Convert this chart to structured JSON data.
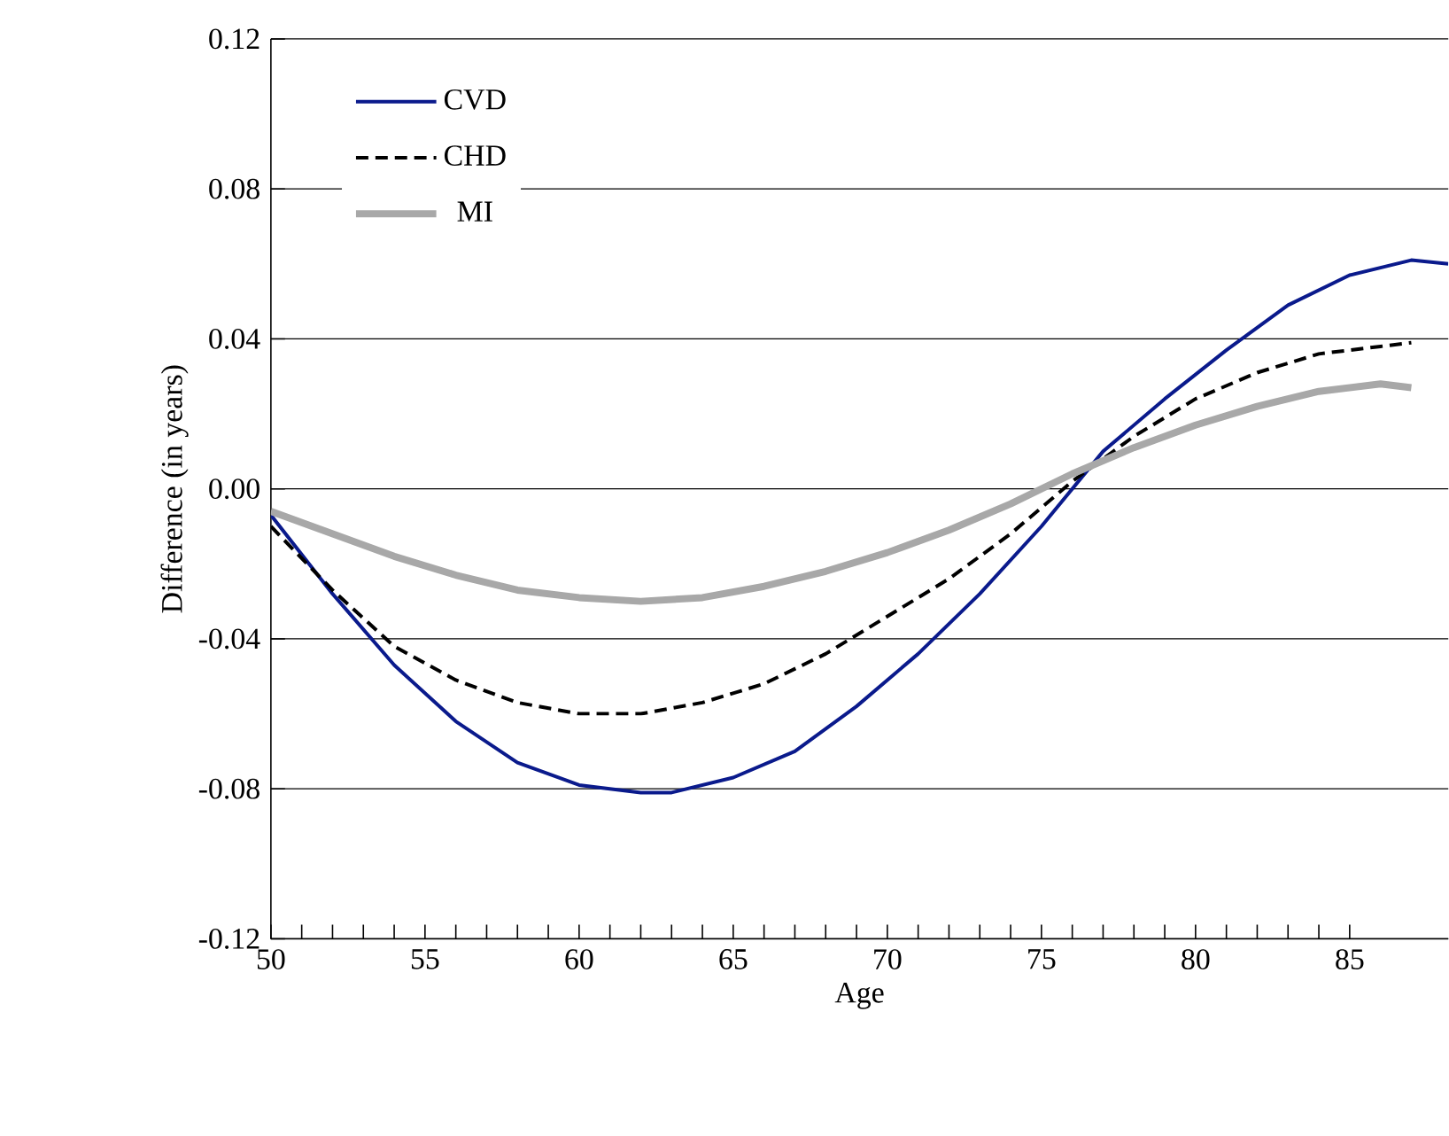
{
  "chart_data": {
    "type": "line",
    "xlabel": "Age",
    "ylabel": "Difference (in years)",
    "xlim": [
      50,
      88.2
    ],
    "ylim": [
      -0.12,
      0.12
    ],
    "xticks": [
      50,
      55,
      60,
      65,
      70,
      75,
      80,
      85
    ],
    "yticks": [
      {
        "value": -0.12,
        "label": "-0.12"
      },
      {
        "value": -0.08,
        "label": "-0.08"
      },
      {
        "value": -0.04,
        "label": "-0.04"
      },
      {
        "value": 0,
        "label": "0.00"
      },
      {
        "value": 0.04,
        "label": "0.04"
      },
      {
        "value": 0.08,
        "label": "0.08"
      },
      {
        "value": 0.12,
        "label": "0.12"
      }
    ],
    "grid": "y",
    "legend": "top left",
    "marker": "none",
    "series": [
      {
        "name": "CVD",
        "color": "#0a1a8c",
        "line_style": "solid",
        "x": [
          50,
          52,
          54,
          56,
          58,
          60,
          62,
          63,
          65,
          67,
          69,
          71,
          73,
          75,
          77,
          79,
          81,
          83,
          85,
          87,
          88.2
        ],
        "values": [
          -0.007,
          -0.028,
          -0.047,
          -0.062,
          -0.073,
          -0.079,
          -0.081,
          -0.081,
          -0.077,
          -0.07,
          -0.058,
          -0.044,
          -0.028,
          -0.01,
          0.01,
          0.024,
          0.037,
          0.049,
          0.057,
          0.061,
          0.06
        ]
      },
      {
        "name": "CHD",
        "color": "#000000",
        "line_style": "dashed",
        "x": [
          50,
          52,
          54,
          56,
          58,
          60,
          62,
          64,
          66,
          68,
          70,
          72,
          74,
          76,
          78,
          80,
          82,
          84,
          86,
          87
        ],
        "values": [
          -0.01,
          -0.027,
          -0.042,
          -0.051,
          -0.057,
          -0.06,
          -0.06,
          -0.057,
          -0.052,
          -0.044,
          -0.034,
          -0.024,
          -0.012,
          0.002,
          0.014,
          0.024,
          0.031,
          0.036,
          0.038,
          0.039
        ]
      },
      {
        "name": "MI",
        "color": "#a8a8a8",
        "line_style": "solid",
        "x": [
          50,
          52,
          54,
          56,
          58,
          60,
          62,
          64,
          66,
          68,
          70,
          72,
          74,
          76,
          78,
          80,
          82,
          84,
          86,
          87
        ],
        "values": [
          -0.006,
          -0.012,
          -0.018,
          -0.023,
          -0.027,
          -0.029,
          -0.03,
          -0.029,
          -0.026,
          -0.022,
          -0.017,
          -0.011,
          -0.004,
          0.004,
          0.011,
          0.017,
          0.022,
          0.026,
          0.028,
          0.027
        ]
      }
    ]
  }
}
